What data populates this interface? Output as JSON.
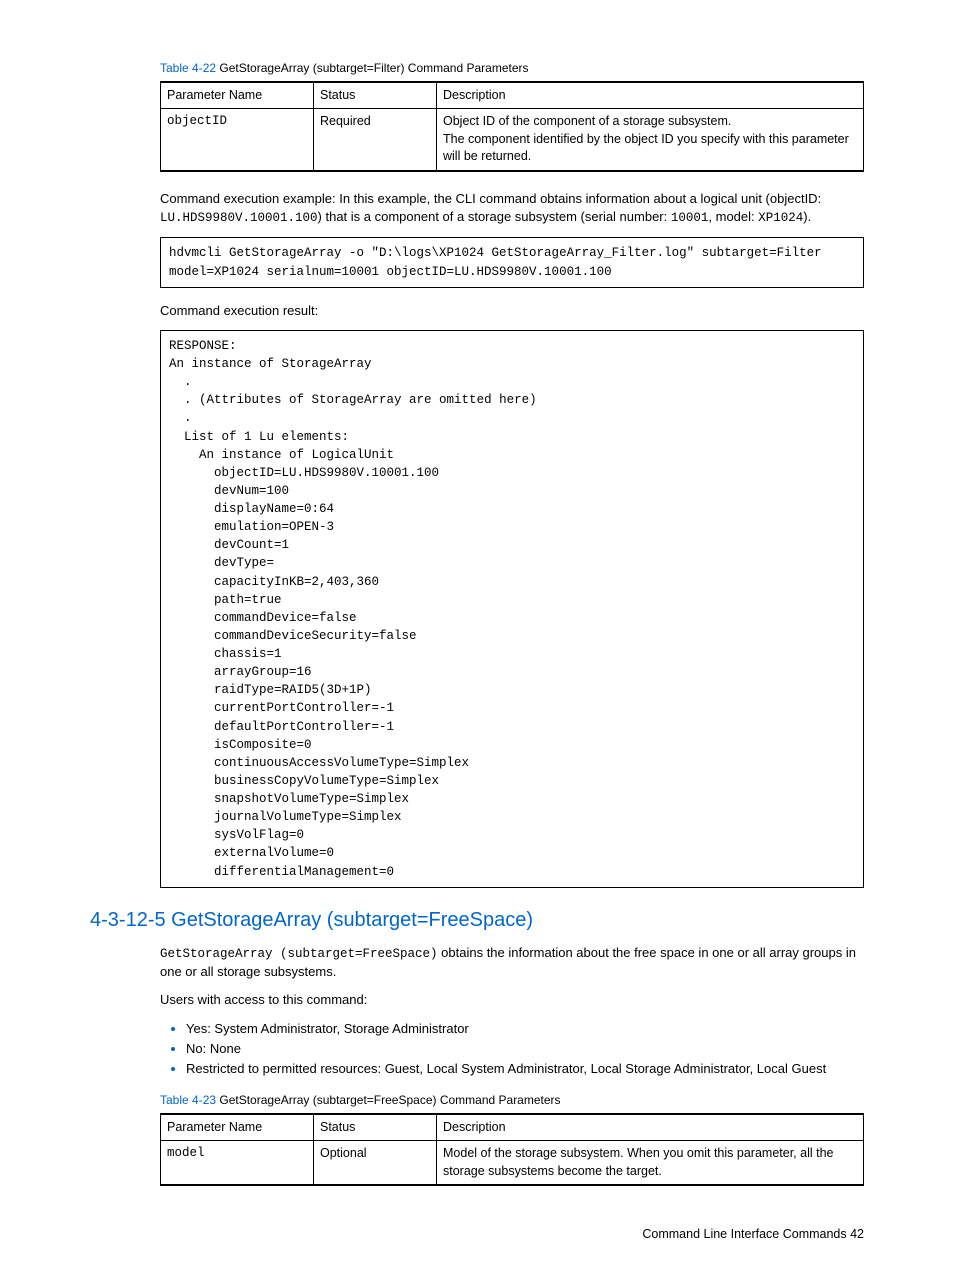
{
  "table1": {
    "caption_num": "Table 4-22",
    "caption_text": "  GetStorageArray (subtarget=Filter) Command Parameters",
    "headers": [
      "Parameter Name",
      "Status",
      "Description"
    ],
    "row": {
      "name": "objectID",
      "status": "Required",
      "desc": "Object ID of the component of a storage subsystem.\nThe component identified by the object ID you specify with this parameter will be returned."
    }
  },
  "para1": {
    "prefix": "Command execution example: In this example, the CLI command obtains information about a logical unit (objectID: ",
    "code1": "LU.HDS9980V.10001.100",
    "mid1": ") that is a component of a storage subsystem (serial number: ",
    "code2": "10001",
    "mid2": ", model: ",
    "code3": "XP1024",
    "suffix": ")."
  },
  "code1": "hdvmcli GetStorageArray -o \"D:\\logs\\XP1024 GetStorageArray_Filter.log\" subtarget=Filter model=XP1024 serialnum=10001 objectID=LU.HDS9980V.10001.100",
  "result_label": "Command execution result:",
  "code2": "RESPONSE:\nAn instance of StorageArray\n  .\n  . (Attributes of StorageArray are omitted here)\n  .\n  List of 1 Lu elements:\n    An instance of LogicalUnit\n      objectID=LU.HDS9980V.10001.100\n      devNum=100\n      displayName=0:64\n      emulation=OPEN-3\n      devCount=1\n      devType=\n      capacityInKB=2,403,360\n      path=true\n      commandDevice=false\n      commandDeviceSecurity=false\n      chassis=1\n      arrayGroup=16\n      raidType=RAID5(3D+1P)\n      currentPortController=-1\n      defaultPortController=-1\n      isComposite=0\n      continuousAccessVolumeType=Simplex\n      businessCopyVolumeType=Simplex\n      snapshotVolumeType=Simplex\n      journalVolumeType=Simplex\n      sysVolFlag=0\n      externalVolume=0\n      differentialManagement=0",
  "section": {
    "title": "4-3-12-5 GetStorageArray (subtarget=FreeSpace)",
    "intro_code": "GetStorageArray (subtarget=FreeSpace)",
    "intro_rest": " obtains the information about the free space in one or all array groups in one or all storage subsystems.",
    "access_label": "Users with access to this command:",
    "bullets": [
      "Yes: System Administrator, Storage Administrator",
      "No: None",
      "Restricted to permitted resources: Guest, Local System Administrator, Local Storage Administrator, Local Guest"
    ]
  },
  "table2": {
    "caption_num": "Table 4-23",
    "caption_text": "  GetStorageArray (subtarget=FreeSpace) Command Parameters",
    "headers": [
      "Parameter Name",
      "Status",
      "Description"
    ],
    "row": {
      "name": "model",
      "status": "Optional",
      "desc": "Model of the storage subsystem. When you omit this parameter, all the storage subsystems become the target."
    }
  },
  "footer": "Command Line Interface Commands   42"
}
